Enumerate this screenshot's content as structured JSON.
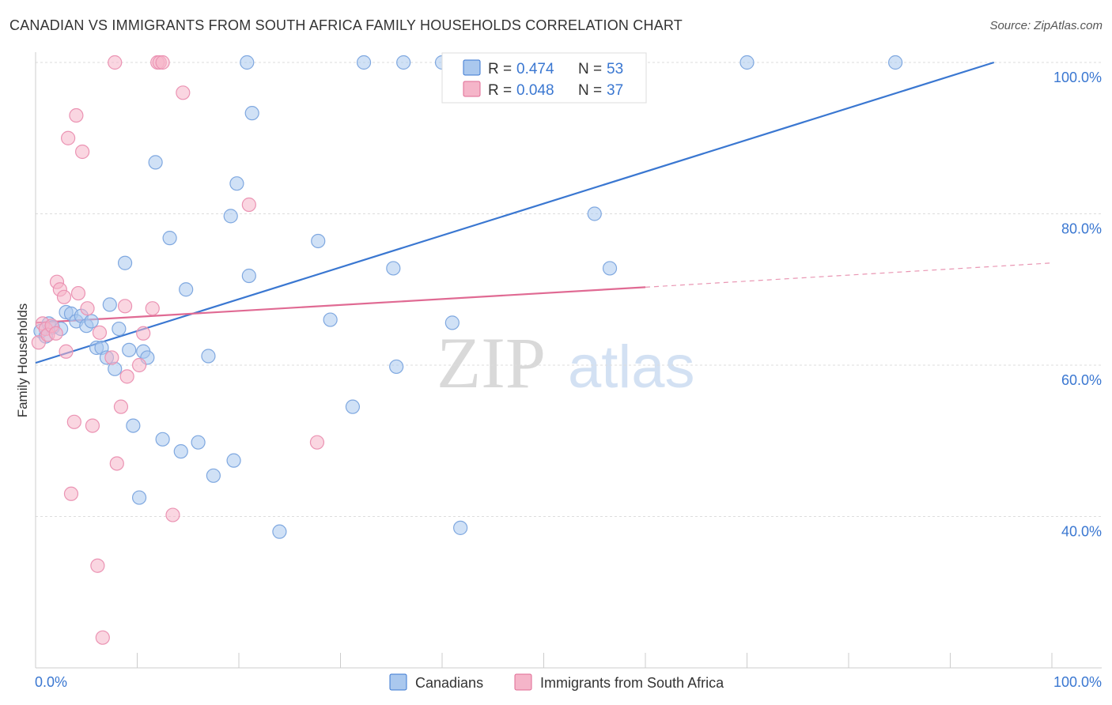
{
  "title": "CANADIAN VS IMMIGRANTS FROM SOUTH AFRICA FAMILY HOUSEHOLDS CORRELATION CHART",
  "source": "Source: ZipAtlas.com",
  "colors": {
    "blue": "#3a77d1",
    "blue_fill": "#aac8ee",
    "pink": "#e06a93",
    "pink_fill": "#f5b5c9",
    "axis_label": "#3a77d1",
    "grid": "#dddddd"
  },
  "chart_data": {
    "type": "scatter",
    "xlabel": "",
    "ylabel": "Family Households",
    "xlim": [
      0,
      100
    ],
    "ylim": [
      20,
      100
    ],
    "x_tick_labels": [
      "0.0%",
      "100.0%"
    ],
    "y_ticks": [
      40,
      60,
      80,
      100
    ],
    "y_tick_labels": [
      "40.0%",
      "60.0%",
      "80.0%",
      "100.0%"
    ],
    "grid": true,
    "watermark": {
      "part1": "ZIP",
      "part2": "atlas"
    },
    "legend": {
      "placement": "top-center",
      "rows": [
        {
          "r_label": "R = ",
          "r_value": "0.474",
          "n_label": "N = ",
          "n_value": "53"
        },
        {
          "r_label": "R = ",
          "r_value": "0.048",
          "n_label": "N = ",
          "n_value": "37"
        }
      ]
    },
    "series": [
      {
        "name": "Canadians",
        "color": "#3a77d1",
        "fill": "#aac8ee",
        "trend": {
          "x": [
            0,
            94.3
          ],
          "y": [
            60.3,
            100
          ]
        },
        "points": [
          [
            0.5,
            64.5
          ],
          [
            1.0,
            63.8
          ],
          [
            1.3,
            65.5
          ],
          [
            1.7,
            65.0
          ],
          [
            2.5,
            64.8
          ],
          [
            3.0,
            67.0
          ],
          [
            3.5,
            66.8
          ],
          [
            4.0,
            65.8
          ],
          [
            4.5,
            66.5
          ],
          [
            5.0,
            65.2
          ],
          [
            5.5,
            65.8
          ],
          [
            6.0,
            62.3
          ],
          [
            6.5,
            62.3
          ],
          [
            7.0,
            61.0
          ],
          [
            7.3,
            68.0
          ],
          [
            7.8,
            59.5
          ],
          [
            8.2,
            64.8
          ],
          [
            8.8,
            73.5
          ],
          [
            9.2,
            62.0
          ],
          [
            9.6,
            52.0
          ],
          [
            10.2,
            42.5
          ],
          [
            10.6,
            61.8
          ],
          [
            11.0,
            61.0
          ],
          [
            11.8,
            86.8
          ],
          [
            12.5,
            50.2
          ],
          [
            13.2,
            76.8
          ],
          [
            14.3,
            48.6
          ],
          [
            14.8,
            70.0
          ],
          [
            16.0,
            49.8
          ],
          [
            17.0,
            61.2
          ],
          [
            17.5,
            45.4
          ],
          [
            19.2,
            79.7
          ],
          [
            19.5,
            47.4
          ],
          [
            19.8,
            84.0
          ],
          [
            20.8,
            100
          ],
          [
            21.0,
            71.8
          ],
          [
            21.3,
            93.3
          ],
          [
            24.0,
            38.0
          ],
          [
            27.8,
            76.4
          ],
          [
            29.0,
            66.0
          ],
          [
            31.2,
            54.5
          ],
          [
            32.3,
            100
          ],
          [
            35.2,
            72.8
          ],
          [
            35.5,
            59.8
          ],
          [
            36.2,
            100
          ],
          [
            40.0,
            100
          ],
          [
            41.0,
            65.6
          ],
          [
            41.8,
            38.5
          ],
          [
            55.0,
            80.0
          ],
          [
            56.5,
            72.8
          ],
          [
            58.4,
            100
          ],
          [
            70.0,
            100
          ],
          [
            84.6,
            100
          ]
        ]
      },
      {
        "name": "Immigrants from South Africa",
        "color": "#e06a93",
        "fill": "#f5b5c9",
        "trend": {
          "x": [
            0,
            60
          ],
          "y": [
            65.6,
            70.3
          ]
        },
        "trend_dashed": {
          "x": [
            60,
            100
          ],
          "y": [
            70.3,
            73.5
          ]
        },
        "points": [
          [
            0.3,
            63.0
          ],
          [
            0.7,
            65.5
          ],
          [
            1.0,
            64.8
          ],
          [
            1.2,
            64.0
          ],
          [
            1.6,
            65.2
          ],
          [
            2.0,
            64.2
          ],
          [
            2.1,
            71.0
          ],
          [
            2.4,
            70.0
          ],
          [
            2.8,
            69.0
          ],
          [
            3.0,
            61.8
          ],
          [
            3.2,
            90.0
          ],
          [
            3.5,
            43.0
          ],
          [
            3.8,
            52.5
          ],
          [
            4.0,
            93.0
          ],
          [
            4.2,
            69.5
          ],
          [
            4.6,
            88.2
          ],
          [
            5.1,
            67.5
          ],
          [
            5.6,
            52.0
          ],
          [
            6.1,
            33.5
          ],
          [
            6.3,
            64.3
          ],
          [
            6.6,
            24.0
          ],
          [
            7.5,
            61.0
          ],
          [
            7.8,
            100
          ],
          [
            8.0,
            47.0
          ],
          [
            8.4,
            54.5
          ],
          [
            8.8,
            67.8
          ],
          [
            9.0,
            58.5
          ],
          [
            10.2,
            60.0
          ],
          [
            10.6,
            64.2
          ],
          [
            11.5,
            67.5
          ],
          [
            12.0,
            100
          ],
          [
            12.2,
            100
          ],
          [
            12.5,
            100
          ],
          [
            13.5,
            40.2
          ],
          [
            14.5,
            96.0
          ],
          [
            21.0,
            81.2
          ],
          [
            27.7,
            49.8
          ]
        ]
      }
    ]
  }
}
